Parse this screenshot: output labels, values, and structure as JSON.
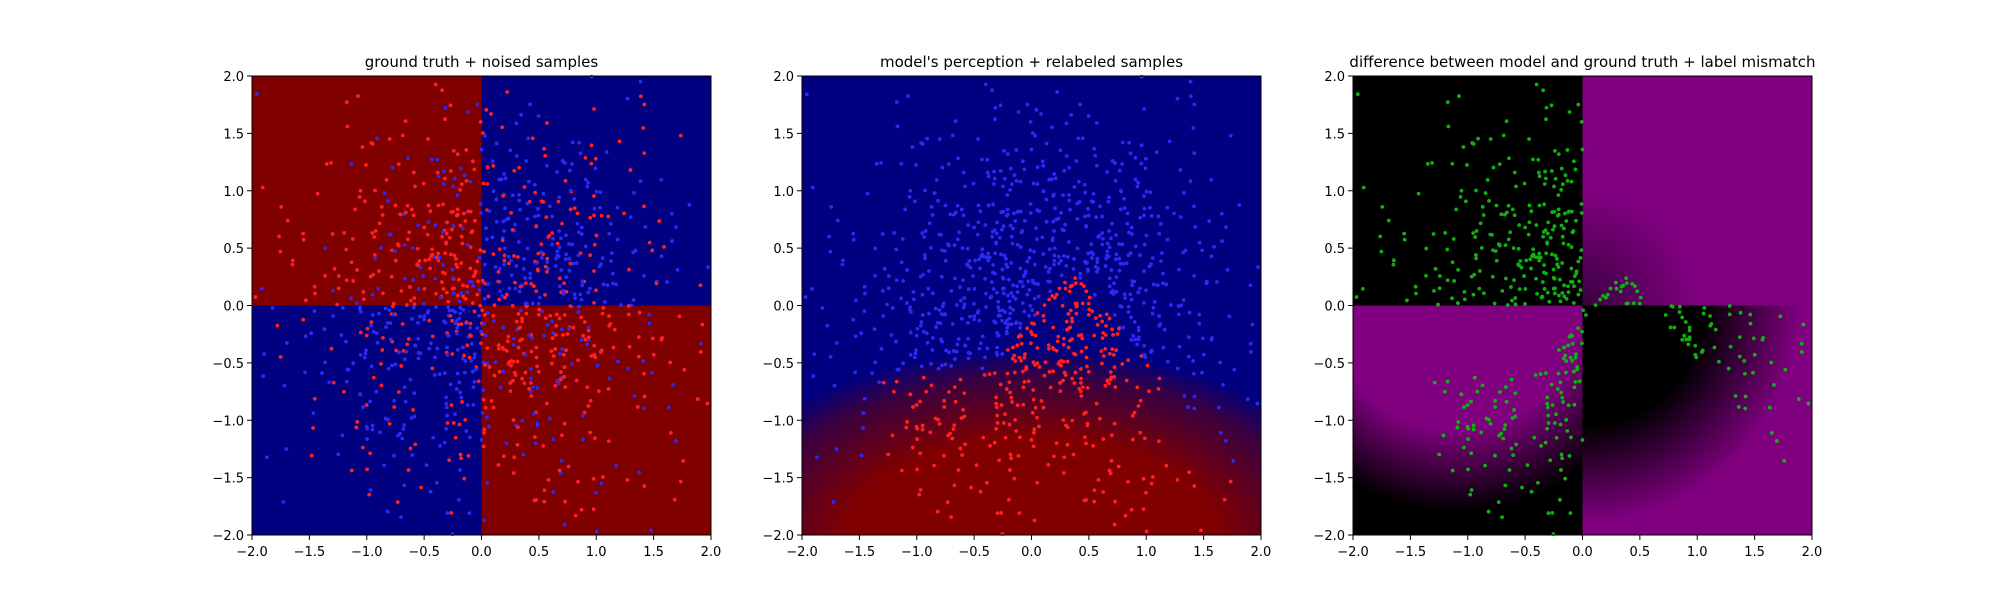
{
  "chart_data": [
    {
      "type": "heatmap",
      "title": "ground truth + noised samples",
      "xlim": [
        -2,
        2
      ],
      "ylim": [
        -2,
        2
      ],
      "xticks": [
        "−2.0",
        "−1.5",
        "−1.0",
        "−0.5",
        "0.0",
        "0.5",
        "1.0",
        "1.5",
        "2.0"
      ],
      "yticks": [
        "−2.0",
        "−1.5",
        "−1.0",
        "−0.5",
        "0.0",
        "0.5",
        "1.0",
        "1.5",
        "2.0"
      ],
      "xlabel": "",
      "ylabel": "",
      "grid": false,
      "background": "xor quadrants: red where x<0,y>0 and x>0,y<0; blue otherwise",
      "colors": {
        "red": "#800000",
        "blue": "#000080",
        "point_red": "#ff2020",
        "point_blue": "#2a2af0"
      },
      "series": [
        {
          "name": "",
          "marker": "dot",
          "description": "~1000 gaussian-distributed samples, labels noised (red/blue)"
        }
      ]
    },
    {
      "type": "heatmap",
      "title": "model's perception + relabeled samples",
      "xlim": [
        -2,
        2
      ],
      "ylim": [
        -2,
        2
      ],
      "xticks": [
        "−2.0",
        "−1.5",
        "−1.0",
        "−0.5",
        "0.0",
        "0.5",
        "1.0",
        "1.5",
        "2.0"
      ],
      "yticks": [
        "−2.0",
        "−1.5",
        "−1.0",
        "−0.5",
        "0.0",
        "0.5",
        "1.0",
        "1.5",
        "2.0"
      ],
      "xlabel": "",
      "ylabel": "",
      "grid": false,
      "colors": {
        "red": "#800000",
        "blue": "#000080",
        "point_red": "#ff2020",
        "point_blue": "#2a2af0"
      },
      "series": [
        {
          "name": "",
          "marker": "dot",
          "description": "samples relabeled by model: red in lower-center wedge, blue elsewhere"
        }
      ]
    },
    {
      "type": "heatmap",
      "title": "difference between model and ground truth + label mismatch",
      "xlim": [
        -2,
        2
      ],
      "ylim": [
        -2,
        2
      ],
      "xticks": [
        "−2.0",
        "−1.5",
        "−1.0",
        "−0.5",
        "0.0",
        "0.5",
        "1.0",
        "1.5",
        "2.0"
      ],
      "yticks": [
        "−2.0",
        "−1.5",
        "−1.0",
        "−0.5",
        "0.0",
        "0.5",
        "1.0",
        "1.5",
        "2.0"
      ],
      "xlabel": "",
      "ylabel": "",
      "grid": false,
      "colors": {
        "magenta": "#800080",
        "black": "#000000",
        "point_green": "#10b010"
      },
      "series": [
        {
          "name": "",
          "marker": "dot",
          "description": "green points mark label mismatches"
        }
      ]
    }
  ]
}
